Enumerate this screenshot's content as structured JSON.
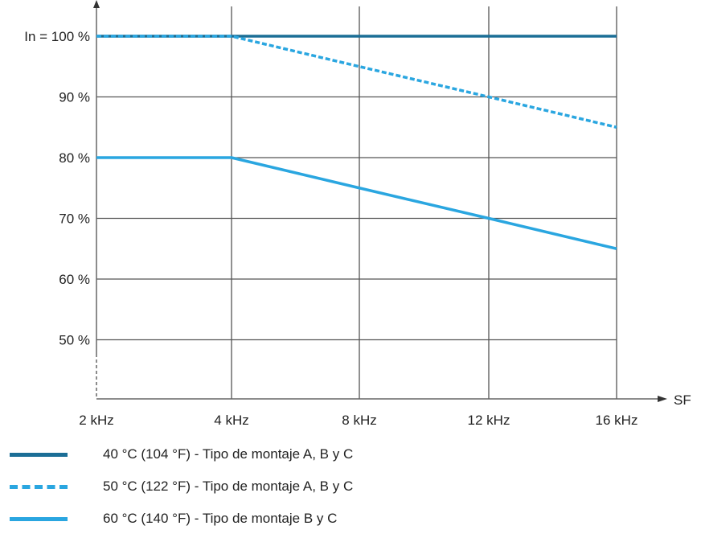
{
  "chart_data": {
    "type": "line",
    "x_categories": [
      "2 kHz",
      "4 kHz",
      "8 kHz",
      "12 kHz",
      "16 kHz"
    ],
    "x_axis_label": "SF",
    "y_ticks": [
      {
        "value": 100,
        "label": "In = 100 %"
      },
      {
        "value": 90,
        "label": "90 %"
      },
      {
        "value": 80,
        "label": "80 %"
      },
      {
        "value": 70,
        "label": "70 %"
      },
      {
        "value": 60,
        "label": "60 %"
      },
      {
        "value": 50,
        "label": "50 %"
      }
    ],
    "ylim": [
      40,
      106
    ],
    "grid": true,
    "legend_position": "bottom",
    "series": [
      {
        "name": "40 °C (104 °F) - Tipo de montaje A, B y C",
        "values": [
          100,
          100,
          100,
          100,
          100
        ],
        "color": "#1b6e96",
        "style": "solid"
      },
      {
        "name": "50 °C (122 °F) - Tipo de montaje A, B y C",
        "values": [
          100,
          100,
          95,
          90,
          85
        ],
        "color": "#2aa6e0",
        "style": "dashed"
      },
      {
        "name": "60 °C (140 °F) - Tipo de montaje B y C",
        "values": [
          80,
          80,
          75,
          70,
          65
        ],
        "color": "#2aa6e0",
        "style": "solid"
      }
    ]
  }
}
